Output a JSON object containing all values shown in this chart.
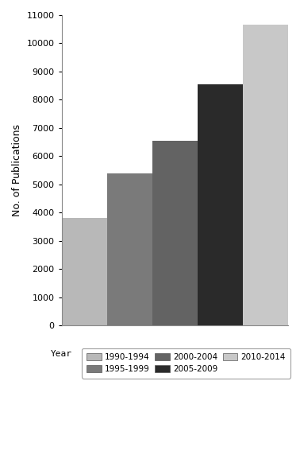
{
  "categories": [
    "1990-1994",
    "1995-1999",
    "2000-2004",
    "2005-2009",
    "2010-2014"
  ],
  "values": [
    3800,
    5400,
    6550,
    8550,
    10650
  ],
  "bar_colors": [
    "#b8b8b8",
    "#7a7a7a",
    "#636363",
    "#2a2a2a",
    "#c8c8c8"
  ],
  "ylabel": "No. of Publications",
  "ylim": [
    0,
    11000
  ],
  "yticks": [
    0,
    1000,
    2000,
    3000,
    4000,
    5000,
    6000,
    7000,
    8000,
    9000,
    10000,
    11000
  ],
  "legend_title": "Year",
  "background_color": "#ffffff",
  "bar_edge_color": "#ffffff",
  "legend_labels": [
    "1990-1994",
    "1995-1999",
    "2000-2004",
    "2005-2009",
    "2010-2014"
  ],
  "legend_colors": [
    "#b8b8b8",
    "#7a7a7a",
    "#636363",
    "#2a2a2a",
    "#c8c8c8"
  ]
}
